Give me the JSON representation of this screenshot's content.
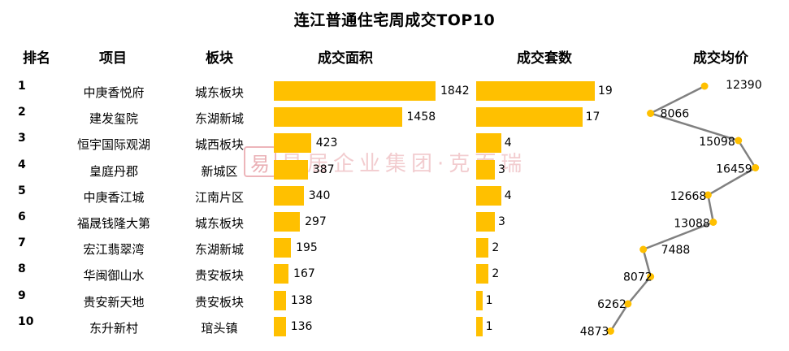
{
  "title": "连江普通住宅周成交TOP10",
  "headers": {
    "rank": "排名",
    "project": "项目",
    "district": "板块",
    "area": "成交面积",
    "units": "成交套数",
    "price": "成交均价"
  },
  "watermark": {
    "text": "易居企业集团·克而瑞",
    "logo_char": "易",
    "color": "#e07a82"
  },
  "colors": {
    "bar": "#FFC000",
    "line": "#808080",
    "point": "#FFC000"
  },
  "chart_data": {
    "type": "table",
    "title": "连江普通住宅周成交TOP10",
    "columns": [
      "排名",
      "项目",
      "板块",
      "成交面积",
      "成交套数",
      "成交均价"
    ],
    "rows": [
      {
        "rank": "1",
        "project": "中庚香悦府",
        "district": "城东板块",
        "area": 1842,
        "units": 19,
        "price": 12390
      },
      {
        "rank": "2",
        "project": "建发玺院",
        "district": "东湖新城",
        "area": 1458,
        "units": 17,
        "price": 8066
      },
      {
        "rank": "3",
        "project": "恒宇国际观湖",
        "district": "城西板块",
        "area": 423,
        "units": 4,
        "price": 15098
      },
      {
        "rank": "4",
        "project": "皇庭丹郡",
        "district": "新城区",
        "area": 387,
        "units": 3,
        "price": 16459
      },
      {
        "rank": "5",
        "project": "中庚香江城",
        "district": "江南片区",
        "area": 340,
        "units": 4,
        "price": 12668
      },
      {
        "rank": "6",
        "project": "福晟钱隆大第",
        "district": "城东板块",
        "area": 297,
        "units": 3,
        "price": 13088
      },
      {
        "rank": "7",
        "project": "宏江翡翠湾",
        "district": "东湖新城",
        "area": 195,
        "units": 2,
        "price": 7488
      },
      {
        "rank": "8",
        "project": "华闽御山水",
        "district": "贵安板块",
        "area": 167,
        "units": 2,
        "price": 8072
      },
      {
        "rank": "9",
        "project": "贵安新天地",
        "district": "贵安板块",
        "area": 138,
        "units": 1,
        "price": 6262
      },
      {
        "rank": "10",
        "project": "东升新村",
        "district": "琯头镇",
        "area": 136,
        "units": 1,
        "price": 4873
      }
    ],
    "bar_series": [
      {
        "name": "成交面积",
        "key": "area",
        "xlim": [
          0,
          1842
        ]
      },
      {
        "name": "成交套数",
        "key": "units",
        "xlim": [
          0,
          19
        ]
      }
    ],
    "line_series": {
      "name": "成交均价",
      "key": "price",
      "xlim": [
        4000,
        17000
      ]
    }
  }
}
